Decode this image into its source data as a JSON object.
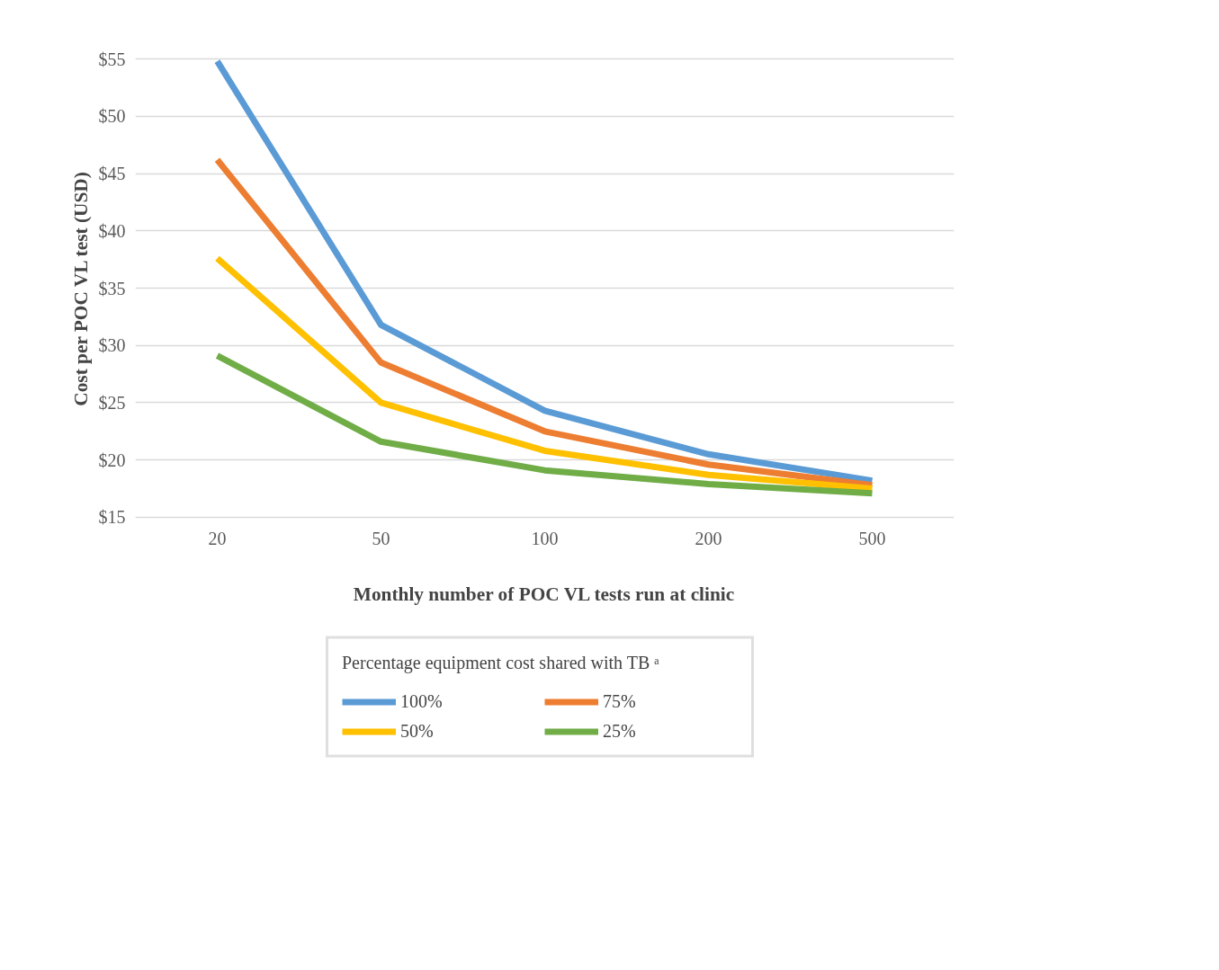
{
  "chart_data": {
    "type": "line",
    "xlabel": "Monthly number of POC VL tests run at clinic",
    "ylabel": "Cost per POC VL test (USD)",
    "legend_title": "Percentage equipment cost shared with TB ᵃ",
    "categories": [
      "20",
      "50",
      "100",
      "200",
      "500"
    ],
    "series": [
      {
        "name": "100%",
        "color": "#5b9bd5",
        "values": [
          54.8,
          31.8,
          24.3,
          20.5,
          18.2
        ]
      },
      {
        "name": "75%",
        "color": "#ed7d31",
        "values": [
          46.2,
          28.5,
          22.5,
          19.6,
          17.8
        ]
      },
      {
        "name": "50%",
        "color": "#ffc000",
        "values": [
          37.6,
          25.0,
          20.8,
          18.7,
          17.5
        ]
      },
      {
        "name": "25%",
        "color": "#70ad47",
        "values": [
          29.1,
          21.6,
          19.1,
          17.9,
          17.1
        ]
      }
    ],
    "ylim": [
      15,
      55
    ],
    "yticks": [
      {
        "value": 15,
        "label": "$15"
      },
      {
        "value": 20,
        "label": "$20"
      },
      {
        "value": 25,
        "label": "$25"
      },
      {
        "value": 30,
        "label": "$30"
      },
      {
        "value": 35,
        "label": "$35"
      },
      {
        "value": 40,
        "label": "$40"
      },
      {
        "value": 45,
        "label": "$45"
      },
      {
        "value": 50,
        "label": "$50"
      },
      {
        "value": 55,
        "label": "$55"
      }
    ],
    "grid": "y",
    "legend": "bottom",
    "marker": "none",
    "line_style": "solid"
  }
}
